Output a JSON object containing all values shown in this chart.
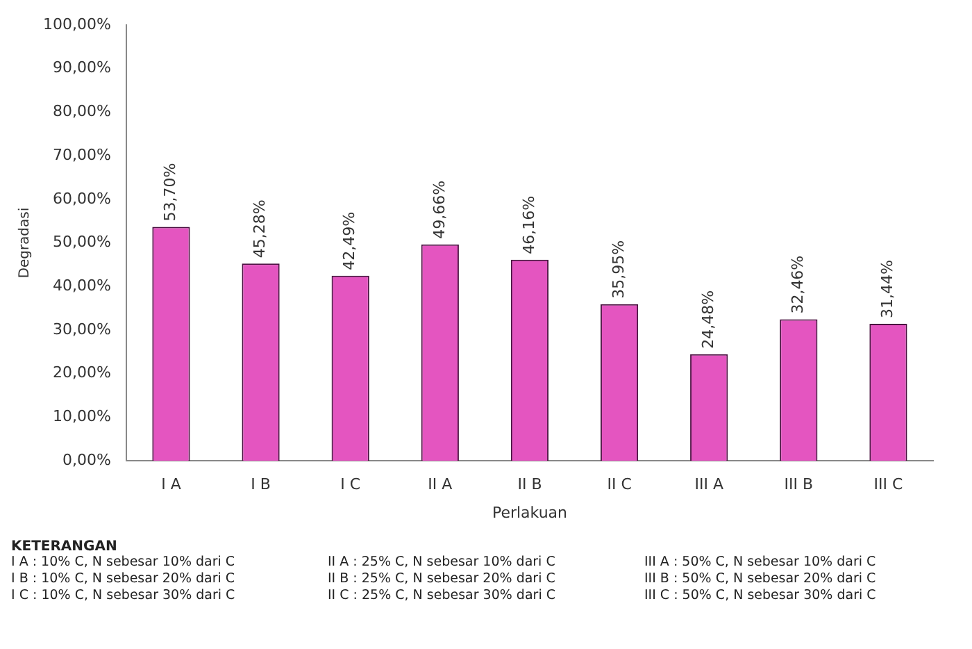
{
  "chart_data": {
    "type": "bar",
    "xlabel": "Perlakuan",
    "ylabel": "Degradasi",
    "categories": [
      "I A",
      "I B",
      "I C",
      "II A",
      "II B",
      "II C",
      "III A",
      "III B",
      "III C"
    ],
    "values": [
      53.7,
      45.28,
      42.49,
      49.66,
      46.16,
      35.95,
      24.48,
      32.46,
      31.44
    ],
    "value_labels": [
      "53,70%",
      "45,28%",
      "42,49%",
      "49,66%",
      "46,16%",
      "35,95%",
      "24,48%",
      "32,46%",
      "31,44%"
    ],
    "color": "#e455c0",
    "ylim": [
      0,
      100
    ],
    "yticks": [
      {
        "value": 0,
        "label": "0,00%"
      },
      {
        "value": 10,
        "label": "10,00%"
      },
      {
        "value": 20,
        "label": "20,00%"
      },
      {
        "value": 30,
        "label": "30,00%"
      },
      {
        "value": 40,
        "label": "40,00%"
      },
      {
        "value": 50,
        "label": "50,00%"
      },
      {
        "value": 60,
        "label": "60,00%"
      },
      {
        "value": 70,
        "label": "70,00%"
      },
      {
        "value": 80,
        "label": "80,00%"
      },
      {
        "value": 90,
        "label": "90,00%"
      },
      {
        "value": 100,
        "label": "100,00%"
      }
    ],
    "grid": false,
    "legend": false,
    "annotations": [
      "KETERANGAN",
      "I A : 10% C, N sebesar 10% dari C",
      "II A : 25% C, N sebesar 10% dari C",
      "III A : 50% C, N sebesar 10% dari C",
      "I B : 10% C, N sebesar 20% dari C",
      "II B : 25% C, N sebesar 20% dari C",
      "III B : 50% C, N sebesar 20% dari C",
      "I C : 10% C, N sebesar 30% dari C",
      "II C : 25% C, N sebesar 30% dari C",
      "III C : 50% C, N sebesar 30% dari C"
    ]
  }
}
